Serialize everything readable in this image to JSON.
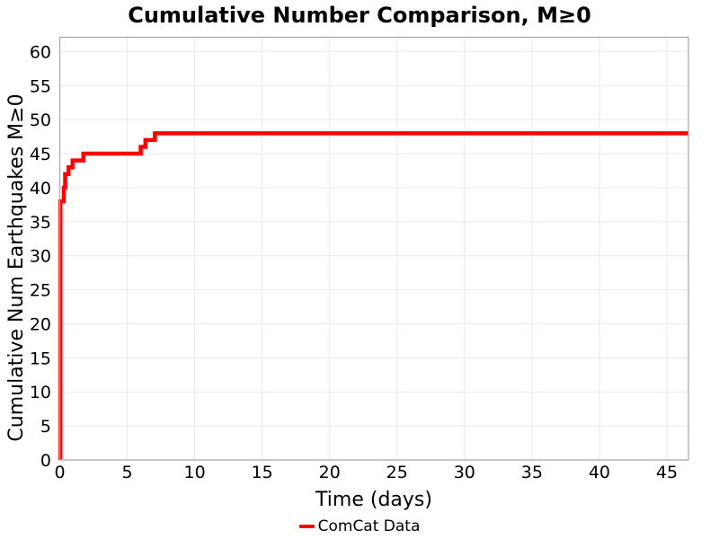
{
  "chart_data": {
    "type": "line",
    "title": "Cumulative Number Comparison, M≥0",
    "xlabel": "Time (days)",
    "ylabel": "Cumulative Num Earthquakes M≥0",
    "xlim": [
      0,
      46.6
    ],
    "ylim": [
      0,
      62.1
    ],
    "x_ticks": [
      0,
      5,
      10,
      15,
      20,
      25,
      30,
      35,
      40,
      45
    ],
    "y_ticks": [
      0,
      5,
      10,
      15,
      20,
      25,
      30,
      35,
      40,
      45,
      50,
      55,
      60
    ],
    "grid": true,
    "legend_position": "bottom-center",
    "series": [
      {
        "name": "ComCat Data",
        "color": "#ff0000",
        "line_width": 4.5,
        "style": "step",
        "points": [
          [
            0.05,
            0
          ],
          [
            0.05,
            38
          ],
          [
            0.3,
            38
          ],
          [
            0.3,
            40
          ],
          [
            0.4,
            40
          ],
          [
            0.4,
            42
          ],
          [
            0.65,
            42
          ],
          [
            0.65,
            43
          ],
          [
            0.95,
            43
          ],
          [
            0.95,
            44
          ],
          [
            1.75,
            44
          ],
          [
            1.75,
            45
          ],
          [
            6.0,
            45
          ],
          [
            6.0,
            46
          ],
          [
            6.35,
            46
          ],
          [
            6.35,
            47
          ],
          [
            7.05,
            47
          ],
          [
            7.05,
            48
          ],
          [
            46.6,
            48
          ]
        ]
      }
    ]
  },
  "colors": {
    "line": "#ff0000",
    "grid": "#e9e9e9",
    "spine": "#aaaaaa",
    "text": "#000000"
  }
}
